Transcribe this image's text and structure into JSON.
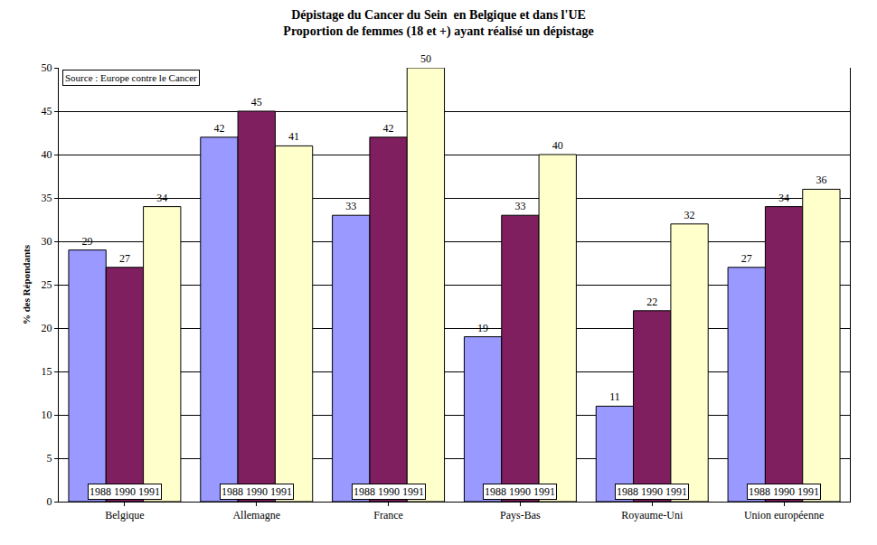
{
  "chart_data": {
    "type": "bar",
    "title": "Dépistage du Cancer du Sein  en Belgique et dans l'UE\nProportion de femmes (18 et +) ayant réalisé un dépistage",
    "y_label": "% des Répondants",
    "categories": [
      "Belgique",
      "Allemagne",
      "France",
      "Pays-Bas",
      "Royaume-Uni",
      "Union européenne"
    ],
    "series": [
      {
        "name": "1988",
        "color": "#9999ff",
        "values": [
          29,
          42,
          33,
          19,
          11,
          27
        ]
      },
      {
        "name": "1990",
        "color": "#7f1f5f",
        "values": [
          27,
          45,
          42,
          33,
          22,
          34
        ]
      },
      {
        "name": "1991",
        "color": "#ffffcc",
        "values": [
          34,
          41,
          50,
          40,
          32,
          36
        ]
      }
    ],
    "ylim": [
      0,
      50
    ],
    "yticks": [
      0,
      5,
      10,
      15,
      20,
      25,
      30,
      35,
      40,
      45,
      50
    ],
    "grid": true,
    "data_labels": true,
    "annotations": [
      "Source : Europe contre le Cancer"
    ]
  }
}
